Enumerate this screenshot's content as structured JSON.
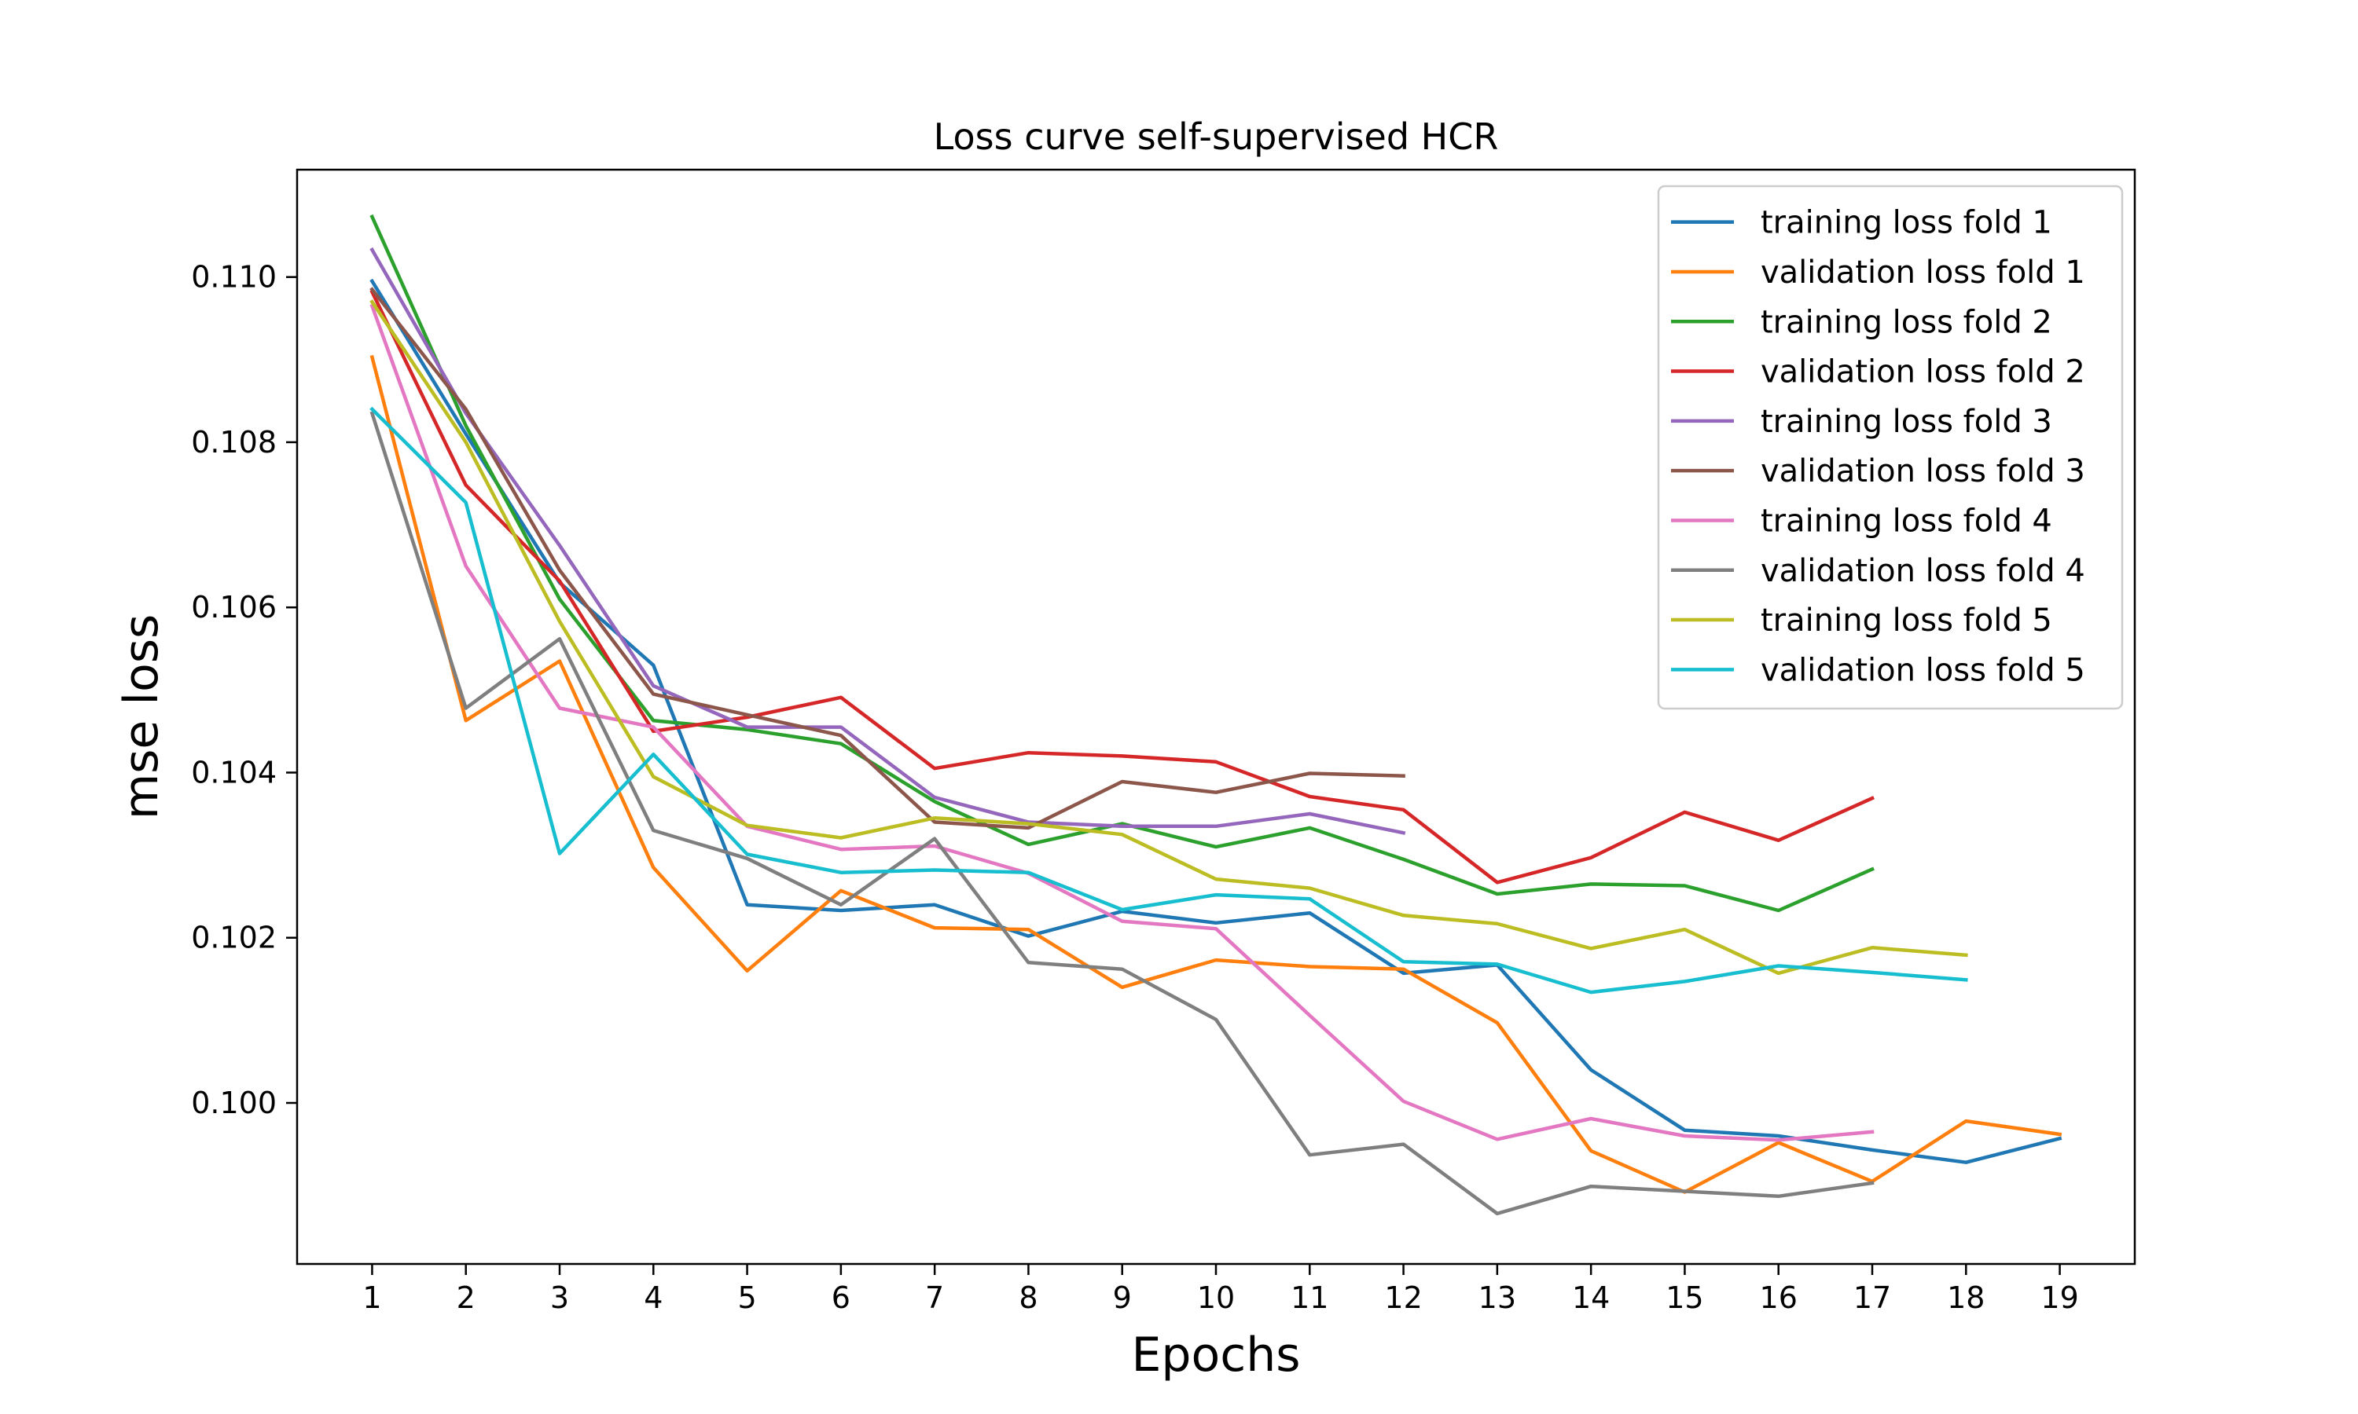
{
  "chart_data": {
    "type": "line",
    "title": "Loss curve self-supervised HCR",
    "xlabel": "Epochs",
    "ylabel": "mse loss",
    "x_ticks": [
      "1",
      "2",
      "3",
      "4",
      "5",
      "6",
      "7",
      "8",
      "9",
      "10",
      "11",
      "12",
      "13",
      "14",
      "15",
      "16",
      "17",
      "18",
      "19"
    ],
    "y_ticks": [
      "0.100",
      "0.102",
      "0.104",
      "0.106",
      "0.108",
      "0.110"
    ],
    "y_tick_values": [
      0.1,
      0.102,
      0.104,
      0.106,
      0.108,
      0.11
    ],
    "xlim": [
      0.2,
      19.8
    ],
    "ylim": [
      0.09805,
      0.1113
    ],
    "grid": false,
    "legend_position": "top-right",
    "series": [
      {
        "name": "training loss fold 1",
        "color": "#1f77b4",
        "x": [
          1,
          2,
          3,
          4,
          5,
          6,
          7,
          8,
          9,
          10,
          11,
          12,
          13,
          14,
          15,
          16,
          17,
          18,
          19
        ],
        "y": [
          0.10995,
          0.1081,
          0.1063,
          0.1053,
          0.1024,
          0.10233,
          0.1024,
          0.10202,
          0.10232,
          0.10218,
          0.1023,
          0.10157,
          0.10167,
          0.1004,
          0.09967,
          0.0996,
          0.09943,
          0.09928,
          0.09957
        ]
      },
      {
        "name": "validation loss fold 1",
        "color": "#ff7f0e",
        "x": [
          1,
          2,
          3,
          4,
          5,
          6,
          7,
          8,
          9,
          10,
          11,
          12,
          13,
          14,
          15,
          16,
          17,
          18,
          19
        ],
        "y": [
          0.10903,
          0.10463,
          0.10535,
          0.10285,
          0.1016,
          0.10257,
          0.10212,
          0.1021,
          0.1014,
          0.10173,
          0.10165,
          0.10162,
          0.10097,
          0.09942,
          0.09892,
          0.09952,
          0.09905,
          0.09978,
          0.09962
        ]
      },
      {
        "name": "training loss fold 2",
        "color": "#2ca02c",
        "x": [
          1,
          2,
          3,
          4,
          5,
          6,
          7,
          8,
          9,
          10,
          11,
          12,
          13,
          14,
          15,
          16,
          17
        ],
        "y": [
          0.11073,
          0.1082,
          0.1061,
          0.10463,
          0.10452,
          0.10435,
          0.10365,
          0.10313,
          0.10338,
          0.1031,
          0.10333,
          0.10295,
          0.10253,
          0.10265,
          0.10263,
          0.10233,
          0.10283
        ]
      },
      {
        "name": "validation loss fold 2",
        "color": "#d62728",
        "x": [
          1,
          2,
          3,
          4,
          5,
          6,
          7,
          8,
          9,
          10,
          11,
          12,
          13,
          14,
          15,
          16,
          17
        ],
        "y": [
          0.10982,
          0.10748,
          0.10632,
          0.1045,
          0.10467,
          0.10491,
          0.10405,
          0.10424,
          0.1042,
          0.10413,
          0.10371,
          0.10355,
          0.10267,
          0.10297,
          0.10352,
          0.10318,
          0.10369
        ]
      },
      {
        "name": "training loss fold 3",
        "color": "#9467bd",
        "x": [
          1,
          2,
          3,
          4,
          5,
          6,
          7,
          8,
          9,
          10,
          11,
          12
        ],
        "y": [
          0.11033,
          0.10835,
          0.10675,
          0.10505,
          0.10455,
          0.10455,
          0.1037,
          0.1034,
          0.10335,
          0.10335,
          0.1035,
          0.10327
        ]
      },
      {
        "name": "validation loss fold 3",
        "color": "#8c564b",
        "x": [
          1,
          2,
          3,
          4,
          5,
          6,
          7,
          8,
          9,
          10,
          11,
          12
        ],
        "y": [
          0.10985,
          0.1084,
          0.10645,
          0.10495,
          0.1047,
          0.10445,
          0.1034,
          0.10333,
          0.10389,
          0.10376,
          0.10399,
          0.10396
        ]
      },
      {
        "name": "training loss fold 4",
        "color": "#e377c2",
        "x": [
          1,
          2,
          3,
          4,
          5,
          6,
          7,
          8,
          9,
          10,
          11,
          12,
          13,
          14,
          15,
          16,
          17
        ],
        "y": [
          0.10965,
          0.1065,
          0.10478,
          0.10455,
          0.10335,
          0.10307,
          0.10311,
          0.10278,
          0.1022,
          0.10211,
          0.10106,
          0.10002,
          0.09956,
          0.09981,
          0.0996,
          0.09955,
          0.09965
        ]
      },
      {
        "name": "validation loss fold 4",
        "color": "#7f7f7f",
        "x": [
          1,
          2,
          3,
          4,
          5,
          6,
          7,
          8,
          9,
          10,
          11,
          12,
          13,
          14,
          15,
          16,
          17
        ],
        "y": [
          0.10835,
          0.10478,
          0.10562,
          0.1033,
          0.10296,
          0.1024,
          0.1032,
          0.1017,
          0.10162,
          0.10101,
          0.09937,
          0.0995,
          0.09866,
          0.09899,
          0.09893,
          0.09887,
          0.09903
        ]
      },
      {
        "name": "training loss fold 5",
        "color": "#bcbd22",
        "x": [
          1,
          2,
          3,
          4,
          5,
          6,
          7,
          8,
          9,
          10,
          11,
          12,
          13,
          14,
          15,
          16,
          17,
          18
        ],
        "y": [
          0.1097,
          0.108,
          0.10583,
          0.10395,
          0.10336,
          0.10321,
          0.10345,
          0.10338,
          0.10325,
          0.10271,
          0.1026,
          0.10227,
          0.10217,
          0.10187,
          0.1021,
          0.10157,
          0.10188,
          0.10179
        ]
      },
      {
        "name": "validation loss fold 5",
        "color": "#17becf",
        "x": [
          1,
          2,
          3,
          4,
          5,
          6,
          7,
          8,
          9,
          10,
          11,
          12,
          13,
          14,
          15,
          16,
          17,
          18
        ],
        "y": [
          0.1084,
          0.10727,
          0.10302,
          0.10422,
          0.10301,
          0.10279,
          0.10282,
          0.10279,
          0.10234,
          0.10252,
          0.10247,
          0.10171,
          0.10168,
          0.10134,
          0.10147,
          0.10166,
          0.10158,
          0.10149
        ]
      }
    ]
  }
}
